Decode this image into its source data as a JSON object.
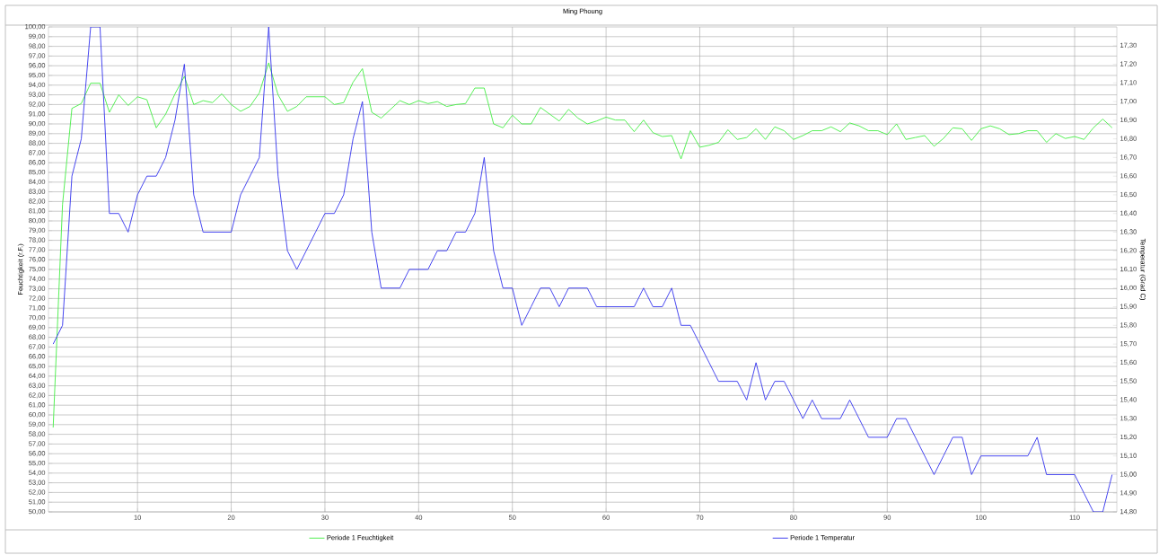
{
  "chart_data": {
    "type": "line",
    "title": "Ming Phoung",
    "ylabel": "Feuchtigkeit (r.F.)",
    "y2label": "Temperatur (Grad C)",
    "x": [
      1,
      2,
      3,
      4,
      5,
      6,
      7,
      8,
      9,
      10,
      11,
      12,
      13,
      14,
      15,
      16,
      17,
      18,
      19,
      20,
      21,
      22,
      23,
      24,
      25,
      26,
      27,
      28,
      29,
      30,
      31,
      32,
      33,
      34,
      35,
      36,
      37,
      38,
      39,
      40,
      41,
      42,
      43,
      44,
      45,
      46,
      47,
      48,
      49,
      50,
      51,
      52,
      53,
      54,
      55,
      56,
      57,
      58,
      59,
      60,
      61,
      62,
      63,
      64,
      65,
      66,
      67,
      68,
      69,
      70,
      71,
      72,
      73,
      74,
      75,
      76,
      77,
      78,
      79,
      80,
      81,
      82,
      83,
      84,
      85,
      86,
      87,
      88,
      89,
      90,
      91,
      92,
      93,
      94,
      95,
      96,
      97,
      98,
      99,
      100,
      101,
      102,
      103,
      104,
      105,
      106,
      107,
      108,
      109,
      110,
      111,
      112,
      113,
      114
    ],
    "series": [
      {
        "name": "Periode 1 Feuchtigkeit",
        "color": "#44ee44",
        "axis": "y",
        "values": [
          58.7,
          81.7,
          91.6,
          92.1,
          94.2,
          94.2,
          91.2,
          93.0,
          91.9,
          92.8,
          92.5,
          89.6,
          91.0,
          93.1,
          94.9,
          92.0,
          92.4,
          92.2,
          93.1,
          92.0,
          91.3,
          91.8,
          93.2,
          96.3,
          93.0,
          91.3,
          91.8,
          92.8,
          92.8,
          92.8,
          92.0,
          92.2,
          94.3,
          95.7,
          91.2,
          90.6,
          91.5,
          92.4,
          92.0,
          92.4,
          92.1,
          92.3,
          91.8,
          92.0,
          92.1,
          93.7,
          93.7,
          90.0,
          89.6,
          90.9,
          90.0,
          90.0,
          91.7,
          91.0,
          90.3,
          91.5,
          90.6,
          90.0,
          90.3,
          90.7,
          90.4,
          90.4,
          89.2,
          90.4,
          89.1,
          88.7,
          88.8,
          86.4,
          89.3,
          87.6,
          87.8,
          88.1,
          89.4,
          88.4,
          88.6,
          89.5,
          88.4,
          89.7,
          89.3,
          88.4,
          88.8,
          89.3,
          89.3,
          89.7,
          89.2,
          90.1,
          89.8,
          89.3,
          89.3,
          88.9,
          90.0,
          88.4,
          88.6,
          88.8,
          87.7,
          88.5,
          89.6,
          89.5,
          88.3,
          89.5,
          89.8,
          89.5,
          88.9,
          89.0,
          89.3,
          89.3,
          88.1,
          89.0,
          88.5,
          88.7,
          88.4,
          89.6,
          90.5,
          89.6
        ]
      },
      {
        "name": "Periode 1 Temperatur",
        "color": "#3333ee",
        "axis": "y2",
        "values": [
          15.7,
          15.8,
          16.6,
          16.8,
          17.4,
          17.4,
          16.4,
          16.4,
          16.3,
          16.5,
          16.6,
          16.6,
          16.7,
          16.9,
          17.2,
          16.5,
          16.3,
          16.3,
          16.3,
          16.3,
          16.5,
          16.6,
          16.7,
          17.4,
          16.6,
          16.2,
          16.1,
          16.2,
          16.3,
          16.4,
          16.4,
          16.5,
          16.8,
          17.0,
          16.3,
          16.0,
          16.0,
          16.0,
          16.1,
          16.1,
          16.1,
          16.2,
          16.2,
          16.3,
          16.3,
          16.4,
          16.7,
          16.2,
          16.0,
          16.0,
          15.8,
          15.9,
          16.0,
          16.0,
          15.9,
          16.0,
          16.0,
          16.0,
          15.9,
          15.9,
          15.9,
          15.9,
          15.9,
          16.0,
          15.9,
          15.9,
          16.0,
          15.8,
          15.8,
          15.7,
          15.6,
          15.5,
          15.5,
          15.5,
          15.4,
          15.6,
          15.4,
          15.5,
          15.5,
          15.4,
          15.3,
          15.4,
          15.3,
          15.3,
          15.3,
          15.4,
          15.3,
          15.2,
          15.2,
          15.2,
          15.3,
          15.3,
          15.2,
          15.1,
          15.0,
          15.1,
          15.2,
          15.2,
          15.0,
          15.1,
          15.1,
          15.1,
          15.1,
          15.1,
          15.1,
          15.2,
          15.0,
          15.0,
          15.0,
          15.0,
          14.9,
          14.8,
          14.8,
          15.0
        ]
      }
    ],
    "xlim": [
      0.5,
      114.5
    ],
    "xticks": [
      10,
      20,
      30,
      40,
      50,
      60,
      70,
      80,
      90,
      100,
      110
    ],
    "ylim": [
      50,
      100
    ],
    "yticks": [
      {
        "value": 50,
        "label": "50,00"
      },
      {
        "value": 51,
        "label": "51,00"
      },
      {
        "value": 52,
        "label": "52,00"
      },
      {
        "value": 53,
        "label": "53,00"
      },
      {
        "value": 54,
        "label": "54,00"
      },
      {
        "value": 55,
        "label": "55,00"
      },
      {
        "value": 56,
        "label": "56,00"
      },
      {
        "value": 57,
        "label": "57,00"
      },
      {
        "value": 58,
        "label": "58,00"
      },
      {
        "value": 59,
        "label": "59,00"
      },
      {
        "value": 60,
        "label": "60,00"
      },
      {
        "value": 61,
        "label": "61,00"
      },
      {
        "value": 62,
        "label": "62,00"
      },
      {
        "value": 63,
        "label": "63,00"
      },
      {
        "value": 64,
        "label": "64,00"
      },
      {
        "value": 65,
        "label": "65,00"
      },
      {
        "value": 66,
        "label": "66,00"
      },
      {
        "value": 67,
        "label": "67,00"
      },
      {
        "value": 68,
        "label": "68,00"
      },
      {
        "value": 69,
        "label": "69,00"
      },
      {
        "value": 70,
        "label": "70,00"
      },
      {
        "value": 71,
        "label": "71,00"
      },
      {
        "value": 72,
        "label": "72,00"
      },
      {
        "value": 73,
        "label": "73,00"
      },
      {
        "value": 74,
        "label": "74,00"
      },
      {
        "value": 75,
        "label": "75,00"
      },
      {
        "value": 76,
        "label": "76,00"
      },
      {
        "value": 77,
        "label": "77,00"
      },
      {
        "value": 78,
        "label": "78,00"
      },
      {
        "value": 79,
        "label": "79,00"
      },
      {
        "value": 80,
        "label": "80,00"
      },
      {
        "value": 81,
        "label": "81,00"
      },
      {
        "value": 82,
        "label": "82,00"
      },
      {
        "value": 83,
        "label": "83,00"
      },
      {
        "value": 84,
        "label": "84,00"
      },
      {
        "value": 85,
        "label": "85,00"
      },
      {
        "value": 86,
        "label": "86,00"
      },
      {
        "value": 87,
        "label": "87,00"
      },
      {
        "value": 88,
        "label": "88,00"
      },
      {
        "value": 89,
        "label": "89,00"
      },
      {
        "value": 90,
        "label": "90,00"
      },
      {
        "value": 91,
        "label": "91,00"
      },
      {
        "value": 92,
        "label": "92,00"
      },
      {
        "value": 93,
        "label": "93,00"
      },
      {
        "value": 94,
        "label": "94,00"
      },
      {
        "value": 95,
        "label": "95,00"
      },
      {
        "value": 96,
        "label": "96,00"
      },
      {
        "value": 97,
        "label": "97,00"
      },
      {
        "value": 98,
        "label": "98,00"
      },
      {
        "value": 99,
        "label": "99,00"
      },
      {
        "value": 100,
        "label": "100,00"
      }
    ],
    "y2lim": [
      14.8,
      17.4
    ],
    "y2ticks": [
      {
        "value": 14.8,
        "label": "14,80"
      },
      {
        "value": 14.9,
        "label": "14,90"
      },
      {
        "value": 15.0,
        "label": "15,00"
      },
      {
        "value": 15.1,
        "label": "15,10"
      },
      {
        "value": 15.2,
        "label": "15,20"
      },
      {
        "value": 15.3,
        "label": "15,30"
      },
      {
        "value": 15.4,
        "label": "15,40"
      },
      {
        "value": 15.5,
        "label": "15,50"
      },
      {
        "value": 15.6,
        "label": "15,60"
      },
      {
        "value": 15.7,
        "label": "15,70"
      },
      {
        "value": 15.8,
        "label": "15,80"
      },
      {
        "value": 15.9,
        "label": "15,90"
      },
      {
        "value": 16.0,
        "label": "16,00"
      },
      {
        "value": 16.1,
        "label": "16,10"
      },
      {
        "value": 16.2,
        "label": "16,20"
      },
      {
        "value": 16.3,
        "label": "16,30"
      },
      {
        "value": 16.4,
        "label": "16,40"
      },
      {
        "value": 16.5,
        "label": "16,50"
      },
      {
        "value": 16.6,
        "label": "16,60"
      },
      {
        "value": 16.7,
        "label": "16,70"
      },
      {
        "value": 16.8,
        "label": "16,80"
      },
      {
        "value": 16.9,
        "label": "16,90"
      },
      {
        "value": 17.0,
        "label": "17,00"
      },
      {
        "value": 17.1,
        "label": "17,10"
      },
      {
        "value": 17.2,
        "label": "17,20"
      },
      {
        "value": 17.3,
        "label": "17,30"
      }
    ],
    "grid": true,
    "legend": "bottom",
    "line_style": "solid"
  }
}
